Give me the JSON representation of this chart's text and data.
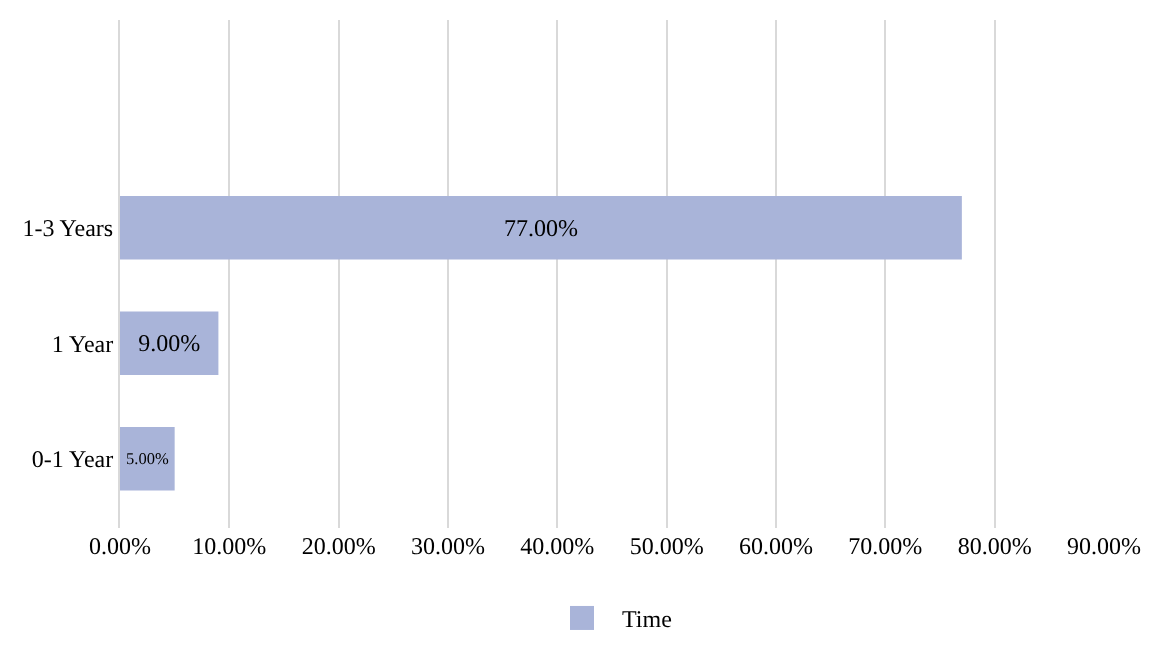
{
  "chart_data": {
    "type": "bar",
    "orientation": "horizontal",
    "categories": [
      "1-3 Years",
      "1 Year",
      "0-1 Year"
    ],
    "series": [
      {
        "name": "Time",
        "color": "#a9b4d9",
        "values": [
          77,
          9,
          5
        ],
        "value_labels": [
          "77.00%",
          "9.00%",
          "5.00%"
        ]
      }
    ],
    "xlim": [
      0,
      90
    ],
    "xticks": [
      {
        "value": 0,
        "label": "0.00%"
      },
      {
        "value": 10,
        "label": "10.00%"
      },
      {
        "value": 20,
        "label": "20.00%"
      },
      {
        "value": 30,
        "label": "30.00%"
      },
      {
        "value": 40,
        "label": "40.00%"
      },
      {
        "value": 50,
        "label": "50.00%"
      },
      {
        "value": 60,
        "label": "60.00%"
      },
      {
        "value": 70,
        "label": "70.00%"
      },
      {
        "value": 80,
        "label": "80.00%"
      },
      {
        "value": 90,
        "label": "90.00%"
      }
    ],
    "grid": "x",
    "legend": "bottom"
  }
}
